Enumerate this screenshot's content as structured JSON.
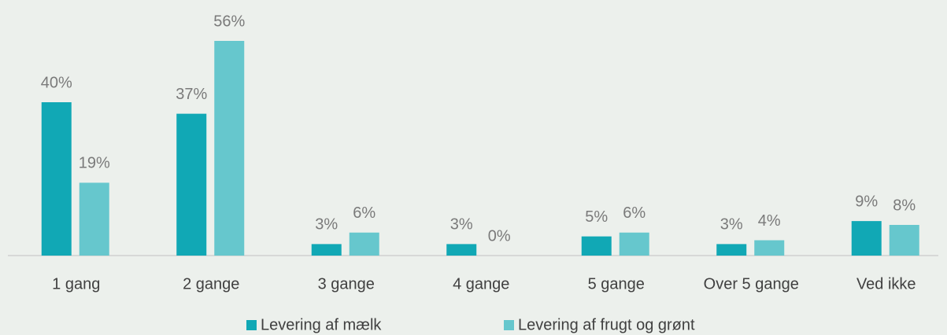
{
  "chart_data": {
    "type": "bar",
    "categories": [
      "1 gang",
      "2 gange",
      "3 gange",
      "4 gange",
      "5 gange",
      "Over 5 gange",
      "Ved ikke"
    ],
    "series": [
      {
        "name": "Levering af mælk",
        "color": "#11a8b5",
        "values": [
          40,
          37,
          3,
          3,
          5,
          3,
          9
        ],
        "value_labels": [
          "40%",
          "37%",
          "3%",
          "3%",
          "5%",
          "3%",
          "9%"
        ]
      },
      {
        "name": "Levering af frugt og grønt",
        "color": "#66c7cd",
        "values": [
          19,
          56,
          6,
          0,
          6,
          4,
          8
        ],
        "value_labels": [
          "19%",
          "56%",
          "6%",
          "0%",
          "6%",
          "4%",
          "8%"
        ]
      }
    ]
  }
}
